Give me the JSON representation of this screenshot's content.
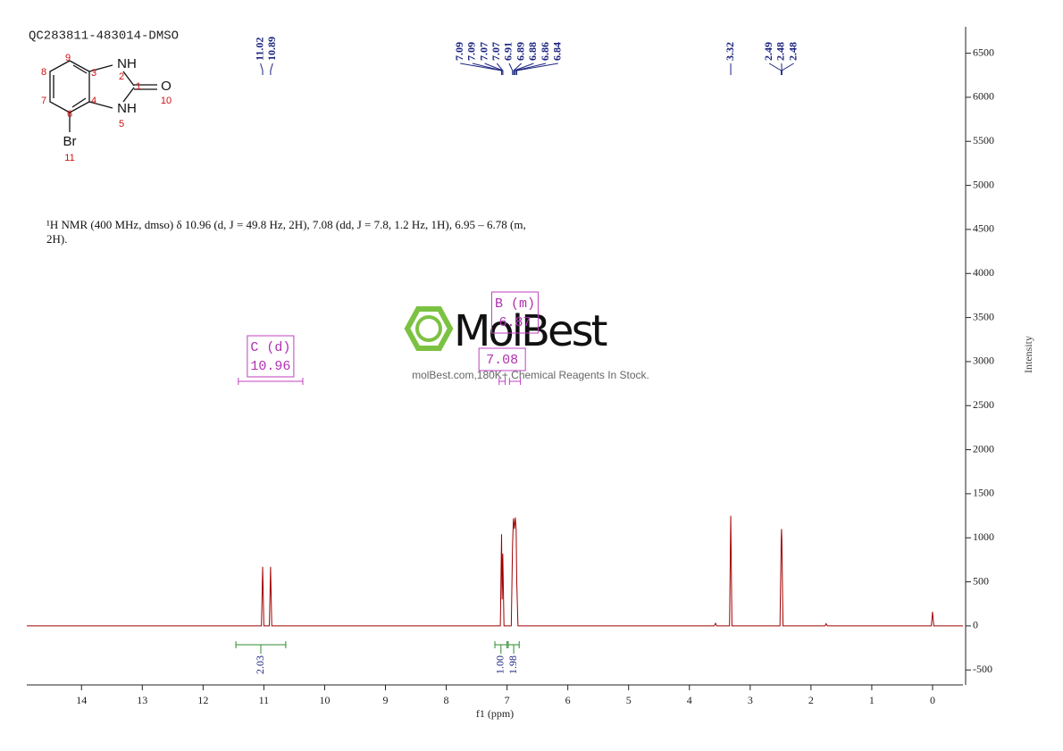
{
  "chart_data": {
    "type": "line",
    "title": "QC283811-483014-DMSO",
    "xlabel": "f1 (ppm)",
    "ylabel": "Intensity",
    "color": "#a00000",
    "xlim": [
      14.9,
      -0.5
    ],
    "xticks": [
      14,
      13,
      12,
      11,
      10,
      9,
      8,
      7,
      6,
      5,
      4,
      3,
      2,
      1,
      0
    ],
    "ylim": [
      -670,
      6800
    ],
    "yticks": [
      -500,
      0,
      500,
      1000,
      1500,
      2000,
      2500,
      3000,
      3500,
      4000,
      4500,
      5000,
      5500,
      6000,
      6500
    ],
    "x": [
      14.9,
      11.04,
      11.02,
      11.0,
      10.91,
      10.89,
      10.87,
      7.11,
      7.09,
      7.08,
      7.07,
      7.05,
      6.93,
      6.91,
      6.895,
      6.88,
      6.865,
      6.85,
      6.84,
      6.82,
      3.59,
      3.57,
      3.55,
      3.34,
      3.32,
      3.3,
      2.51,
      2.49,
      2.485,
      2.48,
      2.46,
      1.77,
      1.75,
      1.73,
      0.02,
      0,
      -0.02,
      -0.5
    ],
    "values": [
      0,
      0,
      670,
      0,
      0,
      670,
      0,
      0,
      1040,
      300,
      820,
      0,
      0,
      900,
      1220,
      1100,
      1230,
      1100,
      500,
      0,
      0,
      30,
      0,
      0,
      1250,
      0,
      0,
      960,
      1100,
      1000,
      0,
      0,
      25,
      0,
      0,
      160,
      0,
      0
    ],
    "peak_labels": [
      11.02,
      10.89,
      7.09,
      7.09,
      7.07,
      7.07,
      6.91,
      6.89,
      6.88,
      6.86,
      6.84,
      3.32,
      2.49,
      2.48,
      2.48
    ],
    "integrals": {
      "values": [
        2.03,
        1.0,
        1.98
      ],
      "value_labels": [
        "2.03",
        "1.00",
        "1.98"
      ],
      "ranges": [
        [
          11.46,
          10.64
        ],
        [
          7.2,
          7.0
        ],
        [
          6.98,
          6.8
        ]
      ]
    },
    "multiplets": [
      {
        "label": "C (d)",
        "shift": 10.96,
        "range": [
          11.42,
          10.36
        ]
      },
      {
        "label": "B (m)",
        "shift": 6.87,
        "range": [
          6.96,
          6.78
        ]
      },
      {
        "shift": 7.08,
        "range": [
          7.13,
          7.03
        ]
      }
    ],
    "description": "¹H NMR (400 MHz, dmso) δ 10.96 (d, J = 49.8 Hz, 2H), 7.08 (dd, J = 7.8, 1.2 Hz, 1H), 6.95 – 6.78 (m, 2H).",
    "structure": {
      "atoms": [
        "NH",
        "NH",
        "O",
        "Br"
      ],
      "numbers": [
        1,
        2,
        3,
        4,
        5,
        6,
        7,
        8,
        9,
        10,
        11
      ]
    },
    "watermark": {
      "brand": "MolBest",
      "tagline": "molBest.com,180K+ Chemical Reagents In Stock."
    }
  }
}
